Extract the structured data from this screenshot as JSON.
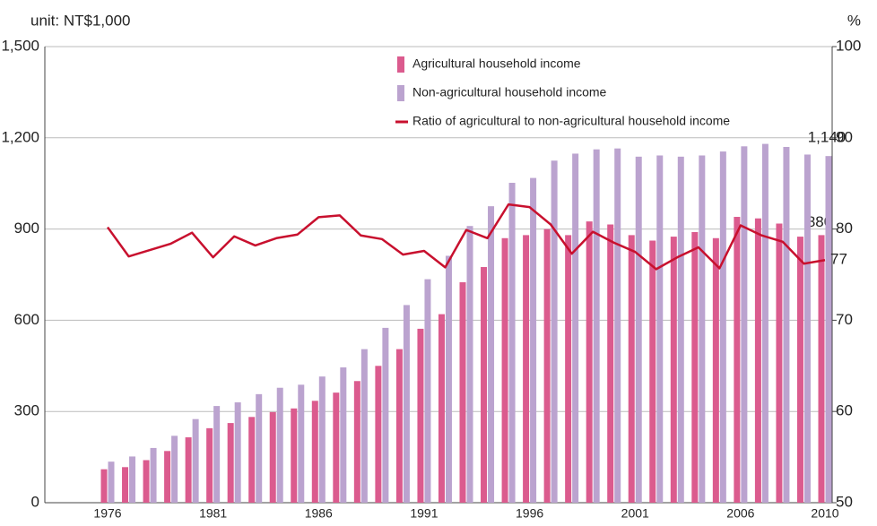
{
  "chart_data": {
    "type": "bar",
    "y_label": "unit: NT$1,000",
    "y2_label": "%",
    "categories": [
      "1976",
      null,
      null,
      null,
      null,
      "1981",
      null,
      null,
      null,
      null,
      "1986",
      null,
      null,
      null,
      null,
      "1991",
      null,
      null,
      null,
      null,
      "1996",
      null,
      null,
      null,
      null,
      "2001",
      null,
      null,
      null,
      null,
      "2006",
      null,
      null,
      null,
      "2010"
    ],
    "series": [
      {
        "name": "Agricultural household income",
        "type": "bar",
        "color": "#db5b8e",
        "values": [
          110,
          117,
          140,
          170,
          215,
          245,
          262,
          282,
          298,
          310,
          335,
          362,
          400,
          450,
          505,
          572,
          620,
          725,
          775,
          870,
          880,
          900,
          880,
          925,
          915,
          880,
          862,
          875,
          890,
          870,
          940,
          935,
          918,
          875,
          880
        ],
        "value_labels": [
          null,
          null,
          null,
          null,
          null,
          null,
          null,
          null,
          null,
          null,
          null,
          null,
          null,
          null,
          null,
          null,
          null,
          null,
          null,
          null,
          null,
          null,
          null,
          null,
          null,
          null,
          null,
          null,
          null,
          null,
          null,
          null,
          null,
          null,
          "880"
        ]
      },
      {
        "name": "Non-agricultural household income",
        "type": "bar",
        "color": "#bba3cf",
        "values": [
          135,
          152,
          180,
          220,
          275,
          318,
          330,
          357,
          378,
          388,
          415,
          445,
          505,
          575,
          650,
          735,
          812,
          910,
          975,
          1052,
          1068,
          1125,
          1148,
          1162,
          1165,
          1138,
          1142,
          1138,
          1142,
          1155,
          1172,
          1180,
          1170,
          1145,
          1140
        ],
        "value_labels": [
          null,
          null,
          null,
          null,
          null,
          null,
          null,
          null,
          null,
          null,
          null,
          null,
          null,
          null,
          null,
          null,
          null,
          null,
          null,
          null,
          null,
          null,
          null,
          null,
          null,
          null,
          null,
          null,
          null,
          null,
          null,
          null,
          null,
          null,
          "1,140"
        ]
      },
      {
        "name": "Ratio of agricultural to non-agricultural household income",
        "type": "line",
        "axis": "y2",
        "color": "#c8102e",
        "values": [
          80.2,
          77,
          77.7,
          78.4,
          79.6,
          76.9,
          79.2,
          78.2,
          79,
          79.4,
          81.3,
          81.5,
          79.3,
          78.9,
          77.2,
          77.6,
          75.8,
          79.9,
          79,
          82.7,
          82.4,
          80.5,
          77.3,
          79.7,
          78.5,
          77.5,
          75.6,
          76.9,
          78,
          75.7,
          80.4,
          79.3,
          78.6,
          76.2,
          76.6
        ],
        "value_labels": [
          null,
          null,
          null,
          null,
          null,
          null,
          null,
          null,
          null,
          null,
          null,
          null,
          null,
          null,
          null,
          null,
          null,
          null,
          null,
          null,
          null,
          null,
          null,
          null,
          null,
          null,
          null,
          null,
          null,
          null,
          null,
          null,
          null,
          null,
          "77"
        ]
      }
    ],
    "ylim": [
      0,
      1500
    ],
    "yticks": [
      0,
      300,
      600,
      900,
      {
        "value": 1200,
        "label": "1,200"
      },
      {
        "value": 1500,
        "label": "1,500"
      }
    ],
    "y2lim": [
      50,
      100
    ],
    "y2ticks": [
      50,
      60,
      70,
      80,
      90,
      100
    ],
    "grid": true,
    "legend": "upper right"
  }
}
